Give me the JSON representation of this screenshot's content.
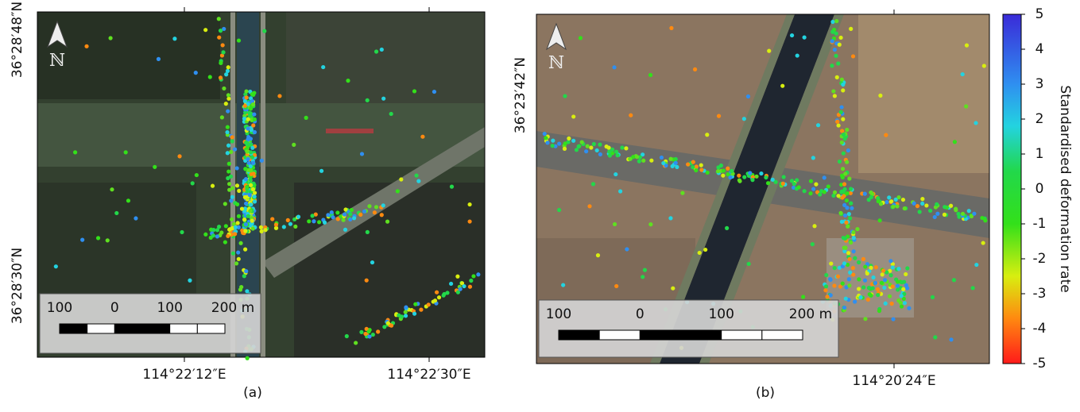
{
  "panels": [
    {
      "caption": "(a)",
      "lat_labels": [
        "36°28′48″N",
        "36°28′30″N"
      ],
      "lon_labels": [
        "114°22′12″E",
        "114°22′30″E"
      ],
      "north": "ℕ",
      "scale_labels": [
        "100",
        "0",
        "100",
        "200 m"
      ]
    },
    {
      "caption": "(b)",
      "lat_labels": [
        "36°23′42″N"
      ],
      "lon_labels": [
        "114°20′24″E"
      ],
      "north": "ℕ",
      "scale_labels": [
        "100",
        "0",
        "100",
        "200 m"
      ]
    }
  ],
  "colorbar": {
    "label": "Standardised deformation rate",
    "lim": [
      -5,
      5
    ],
    "ticks": [
      5,
      4,
      3,
      2,
      1,
      0,
      -1,
      -2,
      -3,
      -4,
      -5
    ]
  }
}
